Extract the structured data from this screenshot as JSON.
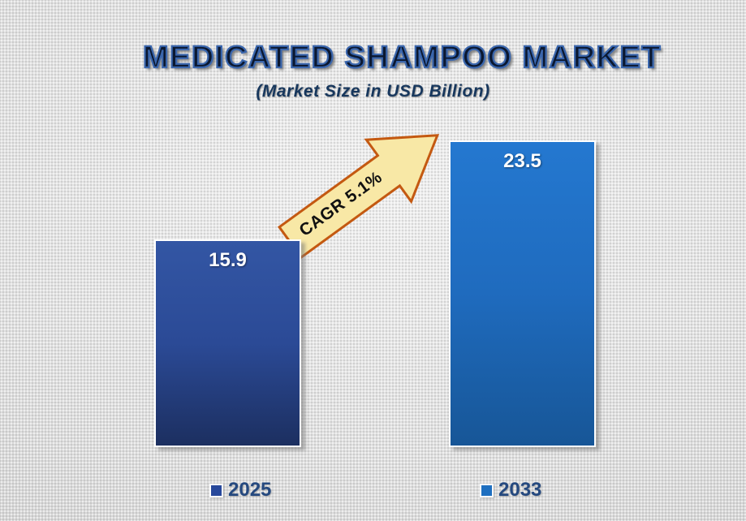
{
  "chart_data": {
    "type": "bar",
    "title": "MEDICATED SHAMPOO MARKET",
    "subtitle": "(Market Size in USD Billion)",
    "categories": [
      "2025",
      "2033"
    ],
    "values": [
      15.9,
      23.5
    ],
    "ylim": [
      0,
      25
    ],
    "grid": false,
    "axes_visible": false,
    "legend_position": "bottom",
    "annotation": "CAGR 5.1%",
    "value_labels": [
      "15.9",
      "23.5"
    ]
  },
  "colors": {
    "bar_2025_top": "#3356A4",
    "bar_2025_mid": "#2B4A96",
    "bar_2025_bottom": "#1C2F60",
    "bar_2033_top": "#2478D0",
    "bar_2033_mid": "#1F6BBE",
    "bar_2033_bottom": "#175697",
    "legend_swatch_2025": "#27489B",
    "legend_swatch_2033": "#1E6FC0",
    "arrow_fill": "#F8E8A6",
    "arrow_stroke": "#C45911",
    "title_text": "#0B1830",
    "subtitle_text": "#17375D",
    "legend_text": "#25497F",
    "value_text": "#FFFFFF"
  }
}
